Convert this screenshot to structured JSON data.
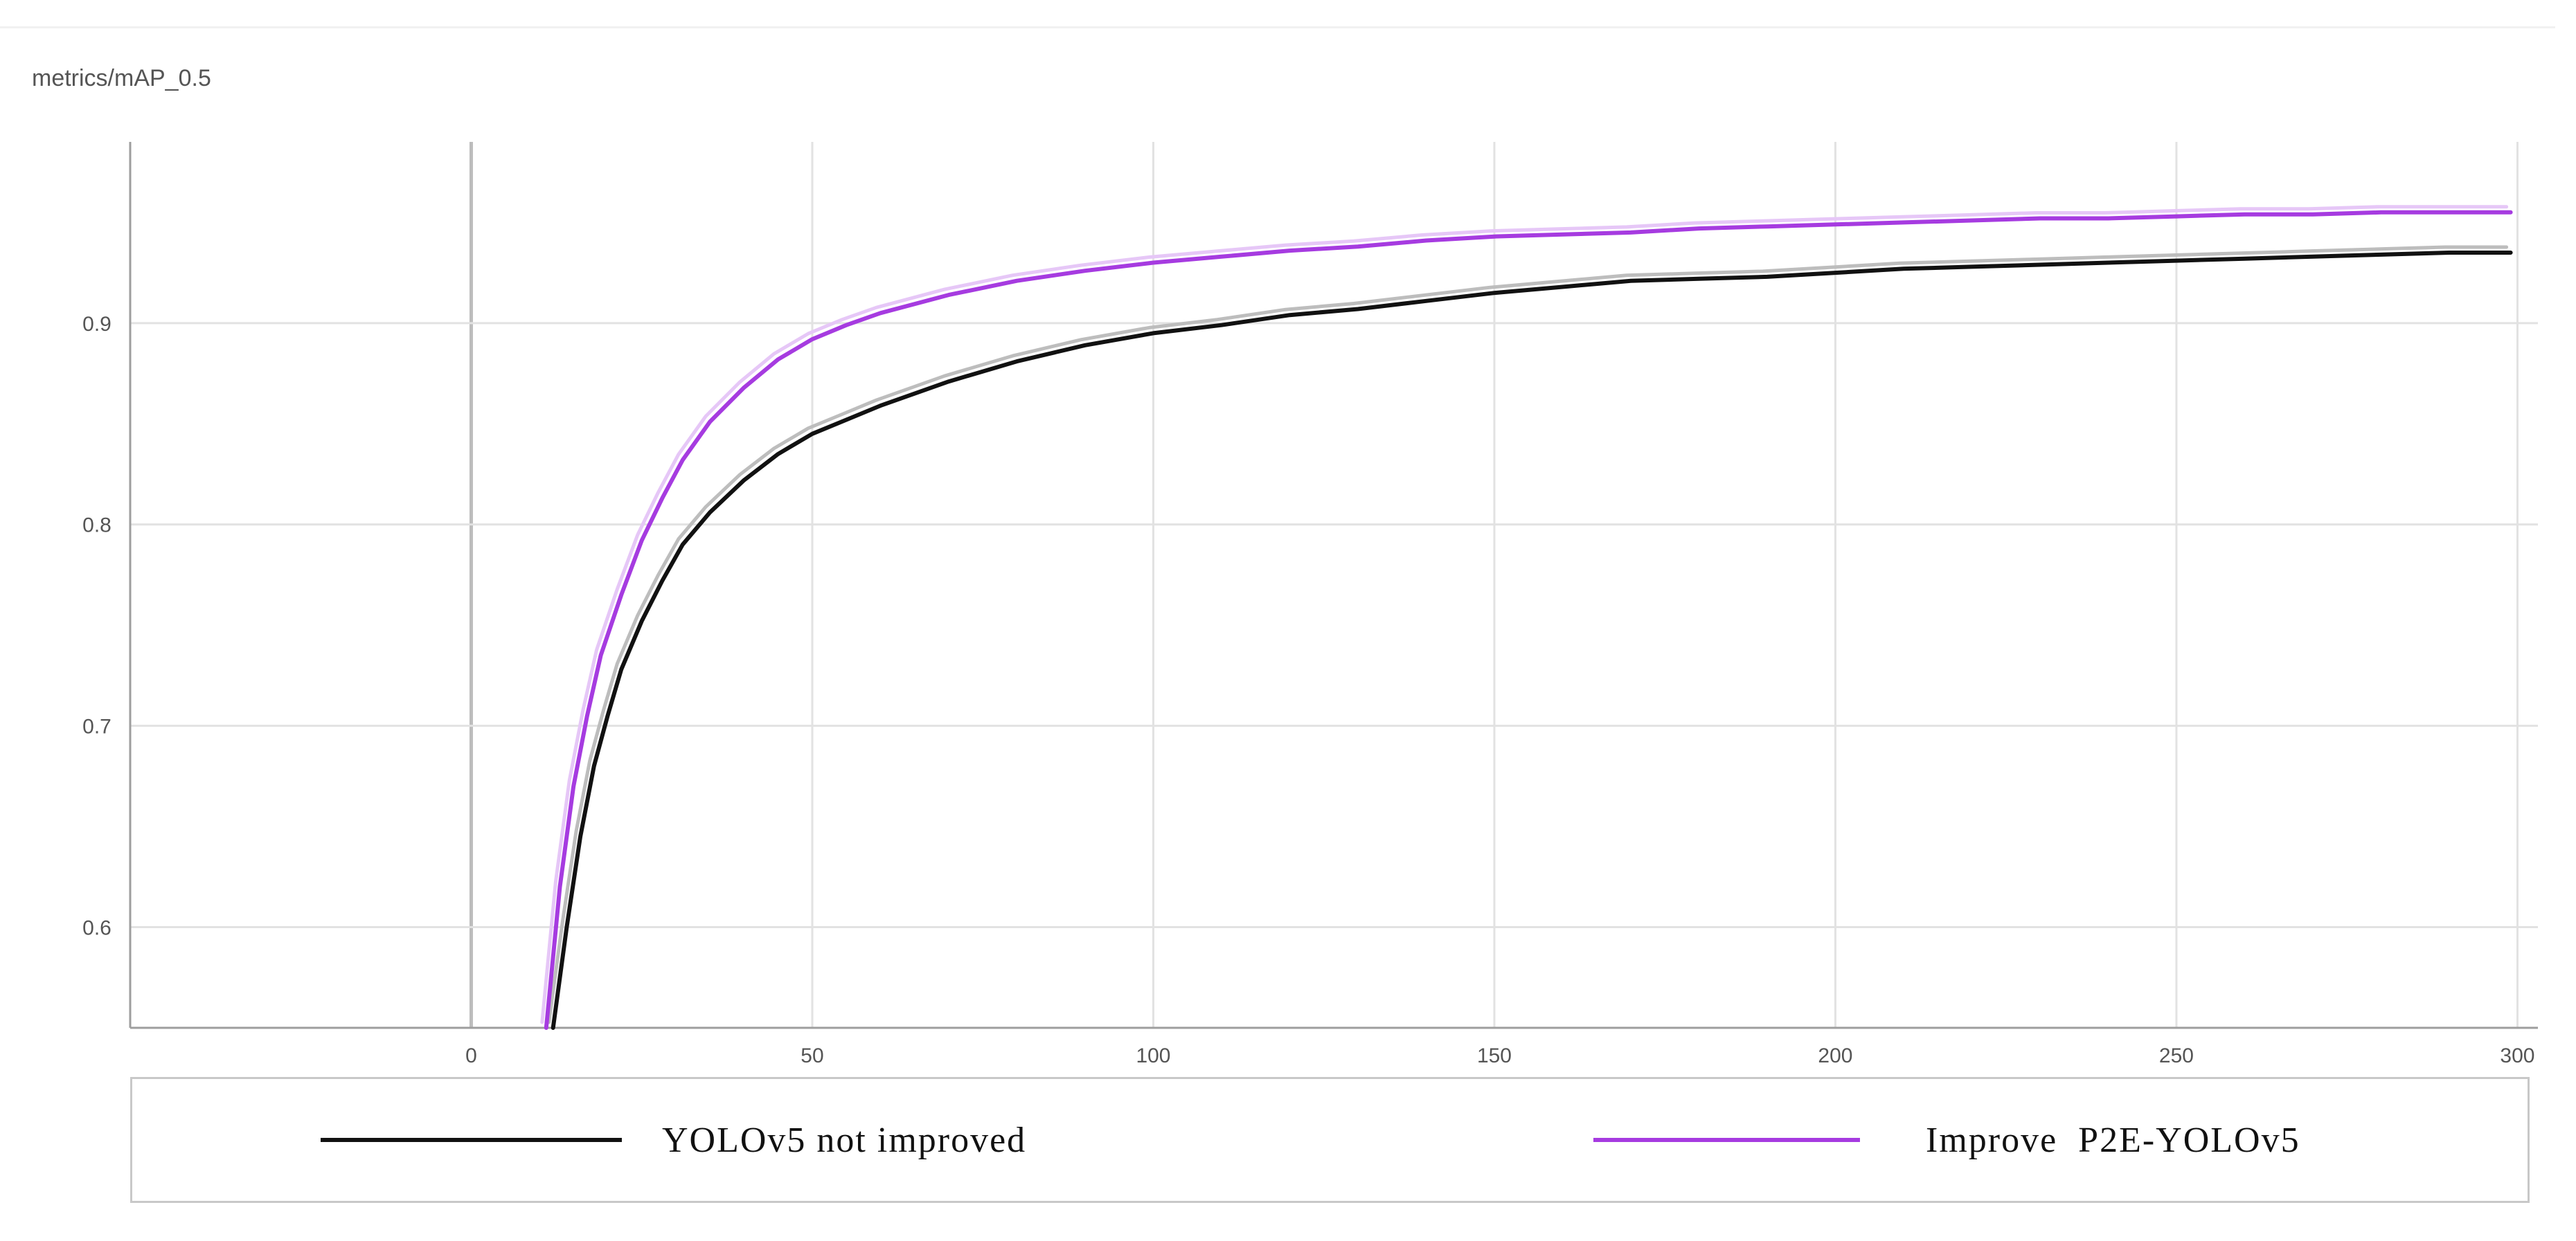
{
  "chart_data": {
    "type": "line",
    "title": "metrics/mAP_0.5",
    "xlabel": "",
    "ylabel": "",
    "xlim": [
      -50,
      303
    ],
    "ylim": [
      0.55,
      0.99
    ],
    "x_ticks": [
      0,
      50,
      100,
      150,
      200,
      250,
      300
    ],
    "y_ticks": [
      0.6,
      0.7,
      0.8,
      0.9
    ],
    "grid": true,
    "legend_position": "bottom",
    "series": [
      {
        "name": "YOLOv5 not improved",
        "color": "#111111",
        "raw_color": "#bdbdbd",
        "x": [
          12,
          14,
          16,
          18,
          20,
          22,
          25,
          28,
          31,
          35,
          40,
          45,
          50,
          55,
          60,
          70,
          80,
          90,
          100,
          110,
          120,
          130,
          140,
          150,
          160,
          170,
          180,
          190,
          200,
          210,
          220,
          230,
          240,
          250,
          260,
          270,
          280,
          290,
          299
        ],
        "y": [
          0.55,
          0.6,
          0.645,
          0.68,
          0.705,
          0.728,
          0.752,
          0.772,
          0.79,
          0.806,
          0.822,
          0.835,
          0.845,
          0.852,
          0.859,
          0.871,
          0.881,
          0.889,
          0.895,
          0.899,
          0.904,
          0.907,
          0.911,
          0.915,
          0.918,
          0.921,
          0.922,
          0.923,
          0.925,
          0.927,
          0.928,
          0.929,
          0.93,
          0.931,
          0.932,
          0.933,
          0.934,
          0.935,
          0.935
        ]
      },
      {
        "name": "Improve  P2E-YOLOv5",
        "color": "#a63be0",
        "raw_color": "#e6c7f7",
        "x": [
          11,
          13,
          15,
          17,
          19,
          22,
          25,
          28,
          31,
          35,
          40,
          45,
          50,
          55,
          60,
          70,
          80,
          90,
          100,
          110,
          120,
          130,
          140,
          150,
          160,
          170,
          180,
          190,
          200,
          210,
          220,
          230,
          240,
          250,
          260,
          270,
          280,
          290,
          299
        ],
        "y": [
          0.55,
          0.62,
          0.67,
          0.705,
          0.735,
          0.765,
          0.792,
          0.813,
          0.832,
          0.851,
          0.868,
          0.882,
          0.892,
          0.899,
          0.905,
          0.914,
          0.921,
          0.926,
          0.93,
          0.933,
          0.936,
          0.938,
          0.941,
          0.943,
          0.944,
          0.945,
          0.947,
          0.948,
          0.949,
          0.95,
          0.951,
          0.952,
          0.952,
          0.953,
          0.954,
          0.954,
          0.955,
          0.955,
          0.955
        ]
      }
    ]
  }
}
